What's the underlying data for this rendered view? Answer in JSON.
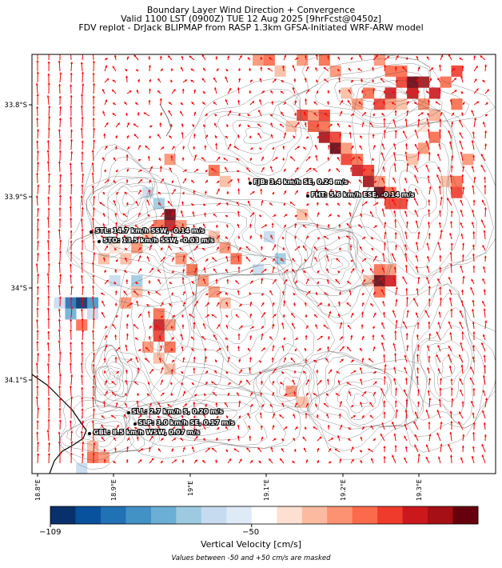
{
  "title": {
    "line1": "Boundary Layer Wind Direction + Convergence",
    "line2": "Valid 1100 LST (0900Z) TUE 12 Aug 2025 [9hrFcst@0450z]",
    "line3": "FDV replot - DrJack BLIPMAP from RASP 1.3km GFSA-Initiated WRF-ARW model"
  },
  "map": {
    "lat_labels": [
      "33.8°S",
      "33.9°S",
      "34°S",
      "34.1°S"
    ],
    "lon_labels": [
      "18.8°E",
      "18.9°E",
      "19°E",
      "19.1°E",
      "19.2°E",
      "19.3°E"
    ],
    "arrow_color": "#ff0000",
    "contour_color": "#555555"
  },
  "sites": [
    {
      "name": "FJB",
      "label": "FJB: 3.4 km/h SE, 0.24 m/s"
    },
    {
      "name": "FHT",
      "label": "FHT: 5.6 km/h ESE, -0.14 m/s"
    },
    {
      "name": "STL",
      "label": "STL: 14.7 km/h SSW, -0.14 m/s"
    },
    {
      "name": "STO",
      "label": "STO: 13.5 km/h SSW, -0.03 m/s"
    },
    {
      "name": "SLL",
      "label": "SLL: 2.7 km/h S, 0.20 m/s"
    },
    {
      "name": "SLP",
      "label": "SLP: 3.0 km/h SE, 0.17 m/s"
    },
    {
      "name": "GBL",
      "label": "GBL: 8.5 km/h WSW, 0.07 m/s"
    }
  ],
  "colorbar": {
    "label": "Vertical Velocity [cm/s]",
    "tick_labels": [
      "−109",
      "−50"
    ],
    "colors": [
      "#08306b",
      "#08519c",
      "#2171b5",
      "#4292c6",
      "#6baed6",
      "#9ecae1",
      "#c6dbef",
      "#deebf7",
      "#ffffff",
      "#fee0d2",
      "#fcbba1",
      "#fc9272",
      "#fb6a4a",
      "#ef3b2c",
      "#cb181d",
      "#a50f15",
      "#67000d"
    ],
    "note": "Values between -50 and +50 cm/s are masked"
  }
}
